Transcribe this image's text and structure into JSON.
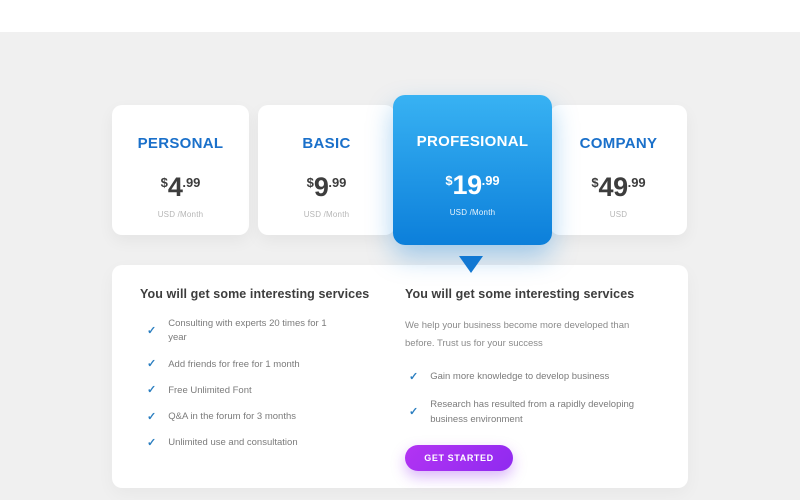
{
  "colors": {
    "background": "#f0f0f0",
    "top_strip": "#ffffff",
    "plan_title_blue": "#1a70ca",
    "featured_gradient_top": "#38b2f3",
    "featured_gradient_bottom": "#0c7fda",
    "pointer_blue": "#1478d2",
    "check_blue": "#2b7ec0",
    "cta_gradient_left": "#b334f3",
    "cta_gradient_right": "#8f2af0"
  },
  "plans": [
    {
      "name": "PERSONAL",
      "currency": "$",
      "amount": "4",
      "decimal": ".99",
      "period": "USD /Month"
    },
    {
      "name": "BASIC",
      "currency": "$",
      "amount": "9",
      "decimal": ".99",
      "period": "USD /Month"
    },
    {
      "name": "PROFESIONAL",
      "currency": "$",
      "amount": "19",
      "decimal": ".99",
      "period": "USD /Month"
    },
    {
      "name": "COMPANY",
      "currency": "$",
      "amount": "49",
      "decimal": ".99",
      "period": "USD"
    }
  ],
  "details": {
    "left": {
      "heading": "You will get some interesting services",
      "check_glyph": "✓",
      "items": [
        "Consulting with experts 20 times for 1 year",
        "Add friends for free for 1 month",
        "Free Unlimited Font",
        "Q&A in the forum for 3 months",
        "Unlimited use and consultation"
      ]
    },
    "right": {
      "heading": "You will get some interesting services",
      "description": "We help your business become more developed than before. Trust us for your success",
      "check_glyph": "✓",
      "items": [
        "Gain more knowledge to develop business",
        "Research has resulted from a rapidly developing business environment"
      ],
      "cta_label": "GET STARTED"
    }
  }
}
